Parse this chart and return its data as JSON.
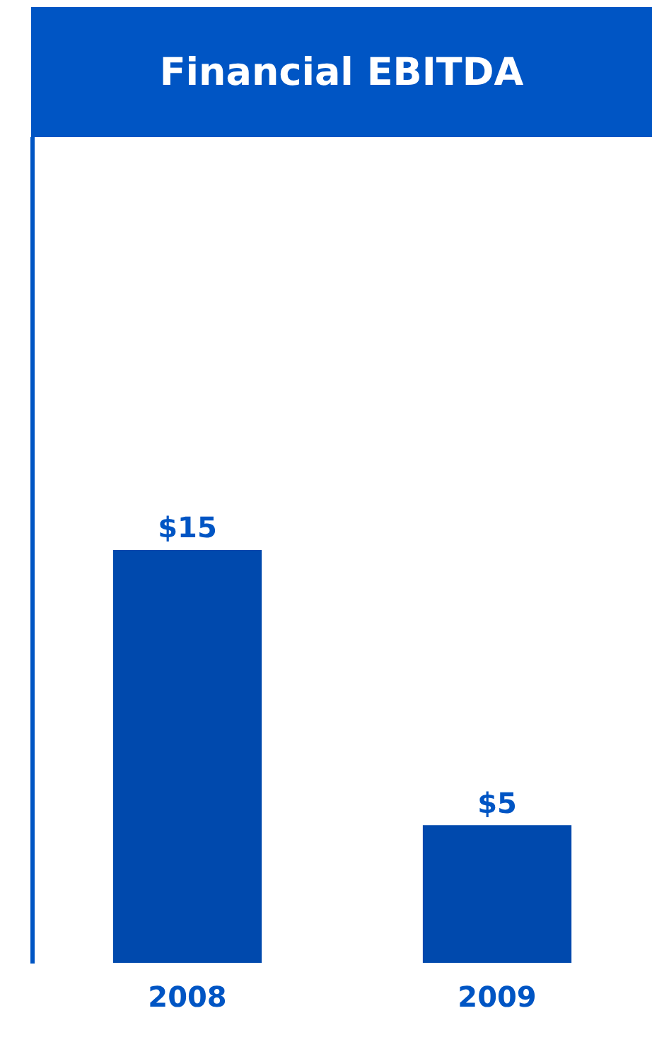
{
  "chart_data": {
    "type": "bar",
    "title": "Financial EBITDA",
    "categories": [
      "2008",
      "2009"
    ],
    "values": [
      15,
      5
    ],
    "value_labels": [
      "$15",
      "$5"
    ],
    "color": "#0049ad",
    "ylim": [
      0,
      30
    ],
    "tick_labels": "x",
    "grid": false,
    "legend": false
  }
}
